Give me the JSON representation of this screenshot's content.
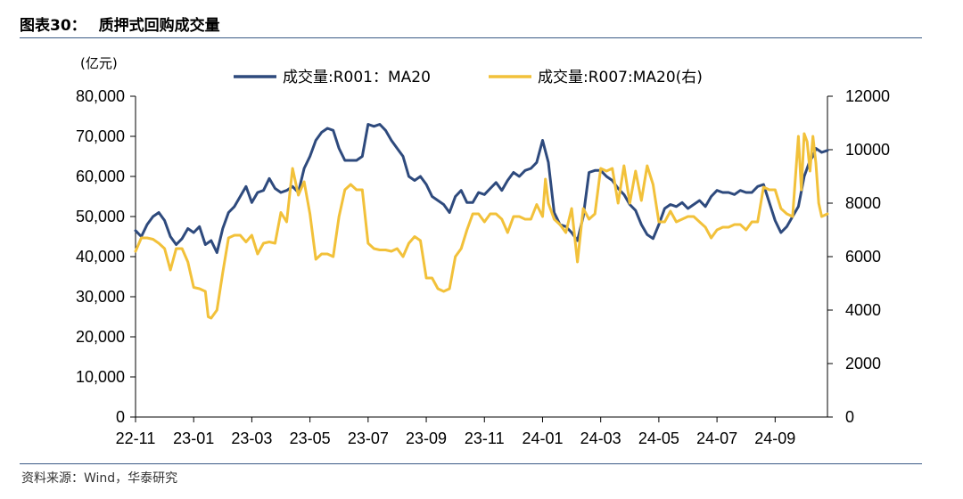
{
  "header": {
    "figure_label": "图表30：",
    "title": "质押式回购成交量"
  },
  "source": "资料来源：Wind，华泰研究",
  "chart_data": {
    "type": "line",
    "title": "质押式回购成交量",
    "left_unit": "(亿元)",
    "legend_position": "top",
    "x_tick_labels": [
      "22-11",
      "23-01",
      "23-03",
      "23-05",
      "23-07",
      "23-09",
      "23-11",
      "24-01",
      "24-03",
      "24-05",
      "24-07",
      "24-09"
    ],
    "x_range": [
      0,
      23.8
    ],
    "x_tick_positions": [
      0,
      2,
      4,
      6,
      8,
      10,
      12,
      14,
      16,
      18,
      20,
      22
    ],
    "y_left": {
      "min": 0,
      "max": 80000,
      "ticks": [
        0,
        10000,
        20000,
        30000,
        40000,
        50000,
        60000,
        70000,
        80000
      ],
      "tick_labels": [
        "0",
        "10,000",
        "20,000",
        "30,000",
        "40,000",
        "50,000",
        "60,000",
        "70,000",
        "80,000"
      ]
    },
    "y_right": {
      "min": 0,
      "max": 12000,
      "ticks": [
        0,
        2000,
        4000,
        6000,
        8000,
        10000,
        12000
      ],
      "tick_labels": [
        "0",
        "2000",
        "4000",
        "6000",
        "8000",
        "10000",
        "12000"
      ]
    },
    "series": [
      {
        "name": "成交量:R001：MA20",
        "axis": "left",
        "color": "#2e4a7d",
        "points": [
          [
            0.0,
            46500
          ],
          [
            0.2,
            45000
          ],
          [
            0.4,
            48000
          ],
          [
            0.6,
            50000
          ],
          [
            0.8,
            51000
          ],
          [
            1.0,
            49000
          ],
          [
            1.2,
            45000
          ],
          [
            1.4,
            43000
          ],
          [
            1.6,
            44500
          ],
          [
            1.8,
            47000
          ],
          [
            2.0,
            46000
          ],
          [
            2.2,
            47500
          ],
          [
            2.4,
            43000
          ],
          [
            2.6,
            44000
          ],
          [
            2.8,
            41000
          ],
          [
            3.0,
            47000
          ],
          [
            3.2,
            51000
          ],
          [
            3.4,
            52500
          ],
          [
            3.6,
            55000
          ],
          [
            3.8,
            57500
          ],
          [
            4.0,
            53500
          ],
          [
            4.2,
            56000
          ],
          [
            4.4,
            56500
          ],
          [
            4.6,
            59500
          ],
          [
            4.8,
            57000
          ],
          [
            5.0,
            56000
          ],
          [
            5.2,
            56500
          ],
          [
            5.4,
            57500
          ],
          [
            5.6,
            56000
          ],
          [
            5.8,
            62000
          ],
          [
            6.0,
            65000
          ],
          [
            6.2,
            69000
          ],
          [
            6.4,
            71000
          ],
          [
            6.6,
            72000
          ],
          [
            6.8,
            71500
          ],
          [
            7.0,
            67000
          ],
          [
            7.2,
            64000
          ],
          [
            7.4,
            64000
          ],
          [
            7.6,
            64000
          ],
          [
            7.8,
            65000
          ],
          [
            8.0,
            73000
          ],
          [
            8.2,
            72500
          ],
          [
            8.4,
            73000
          ],
          [
            8.6,
            71500
          ],
          [
            8.8,
            69000
          ],
          [
            9.0,
            67000
          ],
          [
            9.2,
            65000
          ],
          [
            9.4,
            60000
          ],
          [
            9.6,
            59000
          ],
          [
            9.8,
            60000
          ],
          [
            10.0,
            58000
          ],
          [
            10.2,
            55000
          ],
          [
            10.4,
            54000
          ],
          [
            10.6,
            53000
          ],
          [
            10.8,
            51000
          ],
          [
            11.0,
            55000
          ],
          [
            11.2,
            56500
          ],
          [
            11.4,
            53500
          ],
          [
            11.6,
            53500
          ],
          [
            11.8,
            56000
          ],
          [
            12.0,
            55500
          ],
          [
            12.2,
            57000
          ],
          [
            12.4,
            58500
          ],
          [
            12.6,
            56500
          ],
          [
            12.8,
            59000
          ],
          [
            13.0,
            61000
          ],
          [
            13.2,
            60000
          ],
          [
            13.4,
            61500
          ],
          [
            13.6,
            62000
          ],
          [
            13.8,
            63500
          ],
          [
            14.0,
            69000
          ],
          [
            14.2,
            63500
          ],
          [
            14.4,
            51000
          ],
          [
            14.6,
            48000
          ],
          [
            14.8,
            47500
          ],
          [
            15.0,
            46000
          ],
          [
            15.2,
            44000
          ],
          [
            15.4,
            50000
          ],
          [
            15.6,
            61000
          ],
          [
            15.8,
            61500
          ],
          [
            16.0,
            61500
          ],
          [
            16.2,
            60000
          ],
          [
            16.4,
            59000
          ],
          [
            16.6,
            57000
          ],
          [
            16.8,
            55500
          ],
          [
            17.0,
            53000
          ],
          [
            17.2,
            51500
          ],
          [
            17.4,
            48000
          ],
          [
            17.6,
            45500
          ],
          [
            17.8,
            44500
          ],
          [
            18.0,
            48000
          ],
          [
            18.2,
            52000
          ],
          [
            18.4,
            53000
          ],
          [
            18.6,
            52500
          ],
          [
            18.8,
            53500
          ],
          [
            19.0,
            52000
          ],
          [
            19.2,
            53000
          ],
          [
            19.4,
            54000
          ],
          [
            19.6,
            52500
          ],
          [
            19.8,
            55000
          ],
          [
            20.0,
            56500
          ],
          [
            20.2,
            56000
          ],
          [
            20.4,
            56000
          ],
          [
            20.6,
            55500
          ],
          [
            20.8,
            56500
          ],
          [
            21.0,
            56000
          ],
          [
            21.2,
            56000
          ],
          [
            21.4,
            57500
          ],
          [
            21.6,
            58000
          ],
          [
            21.8,
            53500
          ],
          [
            22.0,
            49000
          ],
          [
            22.2,
            46000
          ],
          [
            22.4,
            47500
          ],
          [
            22.6,
            50000
          ],
          [
            22.8,
            52500
          ],
          [
            23.0,
            60000
          ],
          [
            23.2,
            64000
          ],
          [
            23.3,
            65000
          ],
          [
            23.4,
            67000
          ],
          [
            23.6,
            66000
          ],
          [
            23.8,
            66500
          ]
        ]
      },
      {
        "name": "成交量:R007:MA20(右)",
        "axis": "right",
        "color": "#f2c13a",
        "points": [
          [
            0.0,
            6200
          ],
          [
            0.2,
            6700
          ],
          [
            0.4,
            6700
          ],
          [
            0.6,
            6650
          ],
          [
            0.8,
            6500
          ],
          [
            1.0,
            6300
          ],
          [
            1.2,
            5500
          ],
          [
            1.4,
            6300
          ],
          [
            1.6,
            6300
          ],
          [
            1.8,
            5800
          ],
          [
            2.0,
            4850
          ],
          [
            2.2,
            4800
          ],
          [
            2.4,
            4700
          ],
          [
            2.5,
            3750
          ],
          [
            2.6,
            3700
          ],
          [
            2.8,
            4000
          ],
          [
            3.0,
            5400
          ],
          [
            3.2,
            6700
          ],
          [
            3.4,
            6800
          ],
          [
            3.6,
            6800
          ],
          [
            3.8,
            6550
          ],
          [
            4.0,
            6800
          ],
          [
            4.2,
            6100
          ],
          [
            4.4,
            6500
          ],
          [
            4.6,
            6550
          ],
          [
            4.8,
            6500
          ],
          [
            5.0,
            7650
          ],
          [
            5.2,
            7300
          ],
          [
            5.4,
            9300
          ],
          [
            5.6,
            8300
          ],
          [
            5.8,
            8800
          ],
          [
            6.0,
            7600
          ],
          [
            6.2,
            5900
          ],
          [
            6.4,
            6100
          ],
          [
            6.6,
            6100
          ],
          [
            6.8,
            6000
          ],
          [
            7.0,
            7500
          ],
          [
            7.2,
            8500
          ],
          [
            7.4,
            8700
          ],
          [
            7.6,
            8500
          ],
          [
            7.8,
            8500
          ],
          [
            8.0,
            6500
          ],
          [
            8.2,
            6300
          ],
          [
            8.4,
            6250
          ],
          [
            8.6,
            6250
          ],
          [
            8.8,
            6200
          ],
          [
            9.0,
            6300
          ],
          [
            9.2,
            6000
          ],
          [
            9.4,
            6500
          ],
          [
            9.6,
            6750
          ],
          [
            9.8,
            6600
          ],
          [
            10.0,
            5200
          ],
          [
            10.2,
            5200
          ],
          [
            10.4,
            4800
          ],
          [
            10.6,
            4700
          ],
          [
            10.8,
            4800
          ],
          [
            11.0,
            6000
          ],
          [
            11.2,
            6300
          ],
          [
            11.4,
            7000
          ],
          [
            11.6,
            7600
          ],
          [
            11.8,
            7600
          ],
          [
            12.0,
            7300
          ],
          [
            12.2,
            7600
          ],
          [
            12.4,
            7600
          ],
          [
            12.6,
            7400
          ],
          [
            12.8,
            6900
          ],
          [
            13.0,
            7500
          ],
          [
            13.2,
            7500
          ],
          [
            13.4,
            7400
          ],
          [
            13.6,
            7400
          ],
          [
            13.8,
            7950
          ],
          [
            14.0,
            7500
          ],
          [
            14.1,
            8900
          ],
          [
            14.2,
            8000
          ],
          [
            14.4,
            7400
          ],
          [
            14.6,
            7200
          ],
          [
            14.8,
            6900
          ],
          [
            15.0,
            7800
          ],
          [
            15.2,
            5800
          ],
          [
            15.4,
            7800
          ],
          [
            15.6,
            7400
          ],
          [
            15.8,
            7600
          ],
          [
            16.0,
            9300
          ],
          [
            16.2,
            9200
          ],
          [
            16.4,
            9300
          ],
          [
            16.6,
            8000
          ],
          [
            16.8,
            9400
          ],
          [
            17.0,
            8000
          ],
          [
            17.2,
            9200
          ],
          [
            17.4,
            8100
          ],
          [
            17.6,
            9400
          ],
          [
            17.8,
            8700
          ],
          [
            18.0,
            7300
          ],
          [
            18.2,
            7300
          ],
          [
            18.4,
            7700
          ],
          [
            18.6,
            7300
          ],
          [
            18.8,
            7400
          ],
          [
            19.0,
            7500
          ],
          [
            19.2,
            7500
          ],
          [
            19.4,
            7300
          ],
          [
            19.6,
            7100
          ],
          [
            19.8,
            6700
          ],
          [
            20.0,
            7000
          ],
          [
            20.2,
            7100
          ],
          [
            20.4,
            7100
          ],
          [
            20.6,
            7200
          ],
          [
            20.8,
            7200
          ],
          [
            21.0,
            7000
          ],
          [
            21.2,
            7300
          ],
          [
            21.4,
            7300
          ],
          [
            21.6,
            8600
          ],
          [
            21.8,
            8500
          ],
          [
            22.0,
            8500
          ],
          [
            22.2,
            7800
          ],
          [
            22.4,
            7600
          ],
          [
            22.6,
            7500
          ],
          [
            22.8,
            10500
          ],
          [
            22.9,
            8500
          ],
          [
            23.0,
            10600
          ],
          [
            23.1,
            10300
          ],
          [
            23.2,
            9200
          ],
          [
            23.3,
            10500
          ],
          [
            23.4,
            9500
          ],
          [
            23.5,
            8000
          ],
          [
            23.6,
            7500
          ],
          [
            23.8,
            7600
          ]
        ]
      }
    ]
  }
}
